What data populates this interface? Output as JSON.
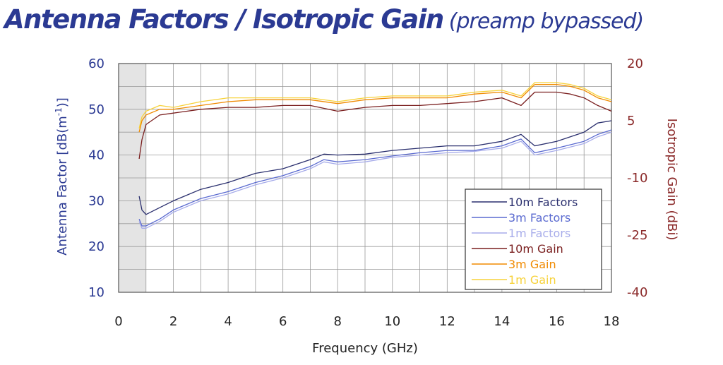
{
  "chart_data": {
    "type": "line",
    "title": "Antenna Factors / Isotropic Gain",
    "subtitle": "(preamp bypassed)",
    "xlabel": "Frequency (GHz)",
    "ylabel_left": "Antenna Factor [dB(m",
    "ylabel_left_sup": "-1",
    "ylabel_left_tail": ")]",
    "ylabel_right": "Isotropic Gain (dBi)",
    "xlim": [
      0,
      18
    ],
    "ylim_left": [
      10,
      60
    ],
    "ylim_right": [
      -40,
      20
    ],
    "x_ticks": [
      "0",
      "2",
      "4",
      "6",
      "8",
      "10",
      "12",
      "14",
      "16",
      "18"
    ],
    "y_ticks_left": [
      "10",
      "20",
      "30",
      "40",
      "50",
      "60"
    ],
    "y_ticks_right": [
      "-40",
      "-25",
      "-10",
      "5",
      "20"
    ],
    "grid": true,
    "shaded_region_x": [
      0,
      1
    ],
    "legend_position": "bottom-right",
    "series": [
      {
        "name": "10m Factors",
        "axis": "left",
        "color": "#2a2f6e",
        "x": [
          0.75,
          0.85,
          1,
          1.5,
          2,
          3,
          4,
          5,
          6,
          7,
          7.5,
          8,
          9,
          10,
          11,
          12,
          13,
          14,
          14.7,
          15.2,
          16,
          17,
          17.5,
          18
        ],
        "y": [
          31,
          28,
          27,
          28.5,
          30,
          32.5,
          34,
          36,
          37,
          39,
          40.2,
          40,
          40.2,
          41,
          41.5,
          42,
          42,
          43,
          44.5,
          42,
          43,
          45,
          47,
          47.5
        ]
      },
      {
        "name": "3m Factors",
        "axis": "left",
        "color": "#5a6ad0",
        "x": [
          0.75,
          0.85,
          1,
          1.5,
          2,
          3,
          4,
          5,
          6,
          7,
          7.5,
          8,
          9,
          10,
          11,
          12,
          13,
          14,
          14.7,
          15.2,
          16,
          17,
          17.5,
          18
        ],
        "y": [
          26,
          24.5,
          24.5,
          26,
          28,
          30.5,
          32,
          34,
          35.5,
          37.5,
          39,
          38.5,
          39,
          39.8,
          40.5,
          41,
          41,
          42,
          43.5,
          40.5,
          41.5,
          43,
          44.5,
          45.5
        ]
      },
      {
        "name": "1m Factors",
        "axis": "left",
        "color": "#a7acea",
        "x": [
          0.75,
          0.85,
          1,
          1.5,
          2,
          3,
          4,
          5,
          6,
          7,
          7.5,
          8,
          9,
          10,
          11,
          12,
          13,
          14,
          14.7,
          15.2,
          16,
          17,
          17.5,
          18
        ],
        "y": [
          25.5,
          24,
          24,
          25.5,
          27.5,
          30,
          31.5,
          33.5,
          35,
          37,
          38.5,
          38,
          38.5,
          39.5,
          40,
          40.5,
          40.8,
          41.5,
          43,
          40,
          41,
          42.5,
          44,
          45
        ]
      },
      {
        "name": "10m Gain",
        "axis": "right",
        "color": "#7a1f1f",
        "x": [
          0.75,
          0.85,
          1,
          1.5,
          2,
          3,
          4,
          5,
          6,
          7,
          8,
          9,
          10,
          11,
          12,
          13,
          14,
          14.7,
          15.2,
          16,
          16.5,
          17,
          17.5,
          18
        ],
        "y": [
          -5,
          0,
          4,
          6.5,
          7,
          8,
          8.5,
          8.5,
          9,
          9,
          7.5,
          8.5,
          9,
          9,
          9.5,
          10,
          11,
          9,
          12.5,
          12.5,
          12,
          11,
          9,
          7.5
        ]
      },
      {
        "name": "3m Gain",
        "axis": "right",
        "color": "#f08a00",
        "x": [
          0.75,
          0.85,
          1,
          1.5,
          2,
          3,
          4,
          5,
          6,
          7,
          8,
          9,
          10,
          11,
          12,
          13,
          14,
          14.7,
          15.2,
          16,
          16.5,
          17,
          17.5,
          18
        ],
        "y": [
          2,
          5,
          6.5,
          8,
          8,
          9,
          10,
          10.5,
          10.5,
          10.5,
          9.5,
          10.5,
          11,
          11,
          11,
          12,
          12.5,
          11,
          14.5,
          14.5,
          14,
          13,
          11,
          10
        ]
      },
      {
        "name": "1m Gain",
        "axis": "right",
        "color": "#f7d23a",
        "x": [
          0.75,
          0.85,
          1,
          1.5,
          2,
          3,
          4,
          5,
          6,
          7,
          8,
          9,
          10,
          11,
          12,
          13,
          14,
          14.7,
          15.2,
          16,
          16.5,
          17,
          17.5,
          18
        ],
        "y": [
          3,
          6,
          7.5,
          9,
          8.5,
          10,
          11,
          11,
          11,
          11,
          10,
          11,
          11.5,
          11.5,
          11.5,
          12.5,
          13,
          11.5,
          15,
          15,
          14.5,
          13.5,
          11.5,
          10.5
        ]
      }
    ]
  }
}
